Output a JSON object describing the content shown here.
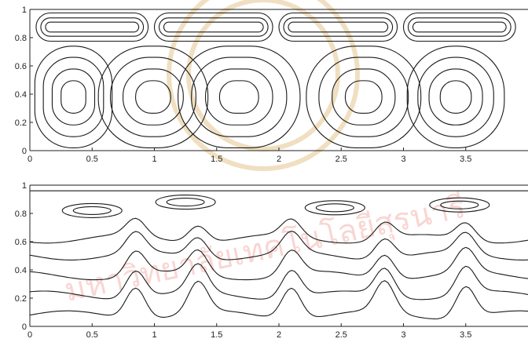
{
  "watermark": {
    "text": "มหาวิทยาลัยเทคโนโลยีสุรนารี",
    "color": "#e04a3a",
    "seal_color": "#d4a24a"
  },
  "chart_data": [
    {
      "type": "contour",
      "title": "",
      "xlabel": "",
      "ylabel": "",
      "xlim": [
        0,
        4
      ],
      "ylim": [
        0,
        1
      ],
      "x_ticks": [
        "0",
        "0.5",
        "1",
        "1.5",
        "2",
        "2.5",
        "3",
        "3.5"
      ],
      "x_tick_values": [
        0,
        0.5,
        1,
        1.5,
        2,
        2.5,
        3,
        3.5
      ],
      "y_ticks": [
        "0",
        "0.2",
        "0.4",
        "0.6",
        "0.8",
        "1"
      ],
      "y_tick_values": [
        0,
        0.2,
        0.4,
        0.6,
        0.8,
        1
      ],
      "grid": false,
      "lower_cells": [
        {
          "x_center": 0.35,
          "y_center": 0.38,
          "width": 0.62,
          "height": 0.72
        },
        {
          "x_center": 0.99,
          "y_center": 0.38,
          "width": 0.88,
          "height": 0.72
        },
        {
          "x_center": 1.68,
          "y_center": 0.38,
          "width": 0.98,
          "height": 0.72
        },
        {
          "x_center": 2.68,
          "y_center": 0.38,
          "width": 0.92,
          "height": 0.72
        },
        {
          "x_center": 3.42,
          "y_center": 0.38,
          "width": 0.78,
          "height": 0.72
        }
      ],
      "upper_cells": [
        {
          "x_start": 0.05,
          "x_end": 0.95,
          "y_center": 0.875
        },
        {
          "x_start": 1.0,
          "x_end": 1.95,
          "y_center": 0.875
        },
        {
          "x_start": 2.0,
          "x_end": 2.95,
          "y_center": 0.875
        },
        {
          "x_start": 3.0,
          "x_end": 3.9,
          "y_center": 0.875
        }
      ]
    },
    {
      "type": "contour",
      "title": "",
      "xlabel": "",
      "ylabel": "",
      "xlim": [
        0,
        4
      ],
      "ylim": [
        0,
        1
      ],
      "x_ticks": [
        "0",
        "0.5",
        "1",
        "1.5",
        "2",
        "2.5",
        "3",
        "3.5"
      ],
      "x_tick_values": [
        0,
        0.5,
        1,
        1.5,
        2,
        2.5,
        3,
        3.5
      ],
      "y_ticks": [
        "0",
        "0.2",
        "0.4",
        "0.6",
        "0.8",
        "1"
      ],
      "y_tick_values": [
        0,
        0.2,
        0.4,
        0.6,
        0.8,
        1
      ],
      "grid": false,
      "contour_levels": [
        0.08,
        0.22,
        0.36,
        0.5,
        0.62
      ],
      "plume_x": [
        0.85,
        1.35,
        2.1,
        2.85,
        3.5
      ],
      "top_lobes": [
        {
          "x_center": 0.5,
          "y_center": 0.82
        },
        {
          "x_center": 1.25,
          "y_center": 0.88
        },
        {
          "x_center": 2.45,
          "y_center": 0.84
        },
        {
          "x_center": 3.45,
          "y_center": 0.86
        }
      ]
    }
  ]
}
